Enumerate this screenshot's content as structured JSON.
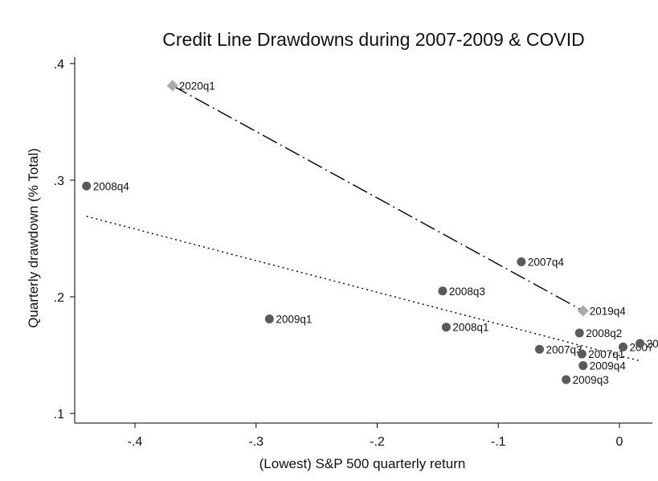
{
  "chart_data": {
    "type": "scatter",
    "title": "Credit Line Drawdowns during 2007-2009 & COVID",
    "xlabel": "(Lowest) S&P 500 quarterly return",
    "ylabel": "Quarterly drawdown (% Total)",
    "xlim": [
      -0.44,
      0.03
    ],
    "ylim": [
      0.1,
      0.4
    ],
    "x_ticks": [
      -0.4,
      -0.3,
      -0.2,
      -0.1,
      0
    ],
    "x_tick_labels": [
      "-.4",
      "-.3",
      "-.2",
      "-.1",
      "0"
    ],
    "y_ticks": [
      0.1,
      0.2,
      0.3,
      0.4
    ],
    "y_tick_labels": [
      ".1",
      ".2",
      ".3",
      ".4"
    ],
    "grid": false,
    "legend": "none",
    "series": [
      {
        "marker": "circle",
        "color": "#5a5a5a",
        "points": [
          {
            "label": "2008q4",
            "x": -0.44,
            "y": 0.295
          },
          {
            "label": "2009q1",
            "x": -0.289,
            "y": 0.181
          },
          {
            "label": "2008q3",
            "x": -0.146,
            "y": 0.205
          },
          {
            "label": "2008q1",
            "x": -0.143,
            "y": 0.174
          },
          {
            "label": "2007q4",
            "x": -0.081,
            "y": 0.23
          },
          {
            "label": "2007q3",
            "x": -0.066,
            "y": 0.155
          },
          {
            "label": "2008q2",
            "x": -0.033,
            "y": 0.169
          },
          {
            "label": "2007q1",
            "x": -0.031,
            "y": 0.151
          },
          {
            "label": "2009q4",
            "x": -0.03,
            "y": 0.141
          },
          {
            "label": "2009q3",
            "x": -0.044,
            "y": 0.129
          },
          {
            "label": "2007",
            "x": 0.003,
            "y": 0.157
          },
          {
            "label": "20",
            "x": 0.017,
            "y": 0.16
          }
        ]
      },
      {
        "marker": "diamond",
        "color": "#a9a9a9",
        "points": [
          {
            "label": "2020q1",
            "x": -0.369,
            "y": 0.381
          },
          {
            "label": "2019q4",
            "x": -0.03,
            "y": 0.188
          }
        ]
      }
    ],
    "lines": [
      {
        "style": "long-dash-dot",
        "x": [
          -0.369,
          -0.03
        ],
        "y": [
          0.381,
          0.188
        ]
      },
      {
        "style": "dotted",
        "x": [
          -0.44,
          0.017
        ],
        "y": [
          0.269,
          0.145
        ]
      }
    ]
  }
}
